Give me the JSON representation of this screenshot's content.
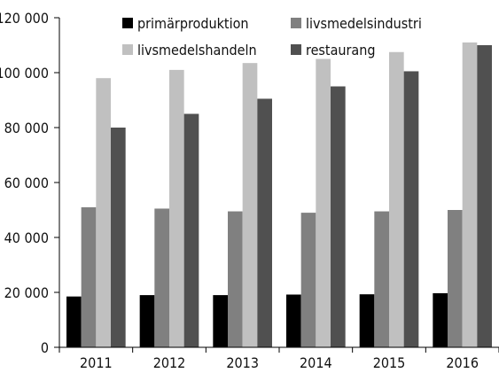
{
  "chart_data": {
    "type": "bar",
    "title": "",
    "xlabel": "",
    "ylabel": "",
    "categories": [
      "2011",
      "2012",
      "2013",
      "2014",
      "2015",
      "2016"
    ],
    "ylim": [
      0,
      120000
    ],
    "y_ticks": [
      0,
      20000,
      40000,
      60000,
      80000,
      100000,
      120000
    ],
    "y_tick_labels": [
      "0",
      "20 000",
      "40 000",
      "60 000",
      "80 000",
      "100 000",
      "120 000"
    ],
    "grid": false,
    "legend_position": "top",
    "series": [
      {
        "name": "primärproduktion",
        "color": "#000000",
        "values": [
          18500,
          19000,
          19000,
          19200,
          19300,
          19700
        ]
      },
      {
        "name": "livsmedelsindustri",
        "color": "#808080",
        "values": [
          51000,
          50500,
          49500,
          49000,
          49500,
          50000
        ]
      },
      {
        "name": "livsmedelshandeln",
        "color": "#c0c0c0",
        "values": [
          98000,
          101000,
          103500,
          105000,
          107500,
          111000
        ]
      },
      {
        "name": "restaurang",
        "color": "#505050",
        "values": [
          80000,
          85000,
          90500,
          95000,
          100500,
          110000
        ]
      }
    ]
  }
}
